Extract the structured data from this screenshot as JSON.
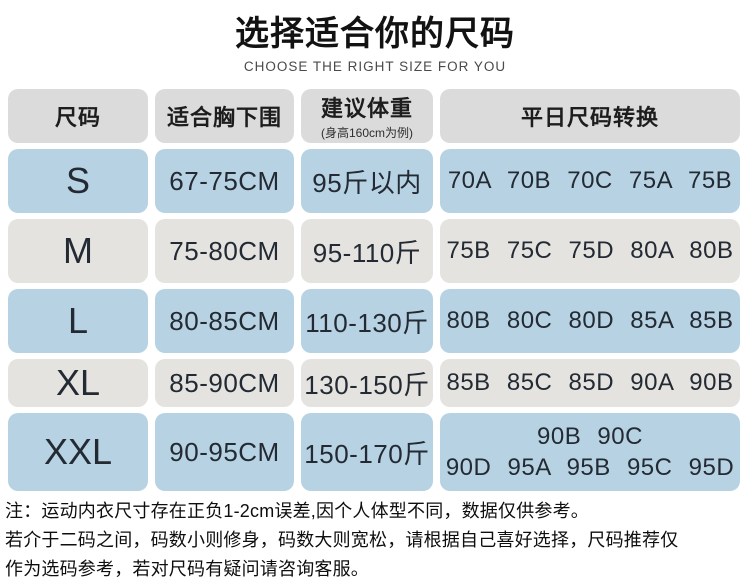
{
  "header": {
    "title": "选择适合你的尺码",
    "subtitle": "CHOOSE THE RIGHT SIZE FOR YOU"
  },
  "table": {
    "columns": {
      "size": "尺码",
      "underbust": "适合胸下围",
      "weight": "建议体重",
      "weight_note": "(身高160cm为例)",
      "conversion": "平日尺码转换"
    },
    "rows": [
      {
        "size": "S",
        "underbust": "67-75CM",
        "weight": "95斤以内",
        "conversion": "70A 70B 70C 75A 75B"
      },
      {
        "size": "M",
        "underbust": "75-80CM",
        "weight": "95-110斤",
        "conversion": "75B 75C 75D 80A 80B"
      },
      {
        "size": "L",
        "underbust": "80-85CM",
        "weight": "110-130斤",
        "conversion": "80B 80C 80D 85A 85B"
      },
      {
        "size": "XL",
        "underbust": "85-90CM",
        "weight": "130-150斤",
        "conversion": "85B 85C 85D 90A 90B"
      },
      {
        "size": "XXL",
        "underbust": "90-95CM",
        "weight": "150-170斤",
        "conversion_lines": [
          "90B 90C",
          "90D 95A 95B 95C 95D"
        ]
      }
    ]
  },
  "notes": {
    "lines": [
      "注：运动内衣尺寸存在正负1-2cm误差,因个人体型不同，数据仅供参考。",
      "若介于二码之间，码数小则修身，码数大则宽松，请根据自己喜好选择，尺码推荐仅",
      "作为选码参考，若对尺码有疑问请咨询客服。"
    ]
  },
  "colors": {
    "row_blue": "#b7d3e3",
    "row_gray": "#e4e3e0",
    "header_gray": "#dbdbdb",
    "text_dark": "#232a33",
    "note_text": "#0e0e0e"
  }
}
